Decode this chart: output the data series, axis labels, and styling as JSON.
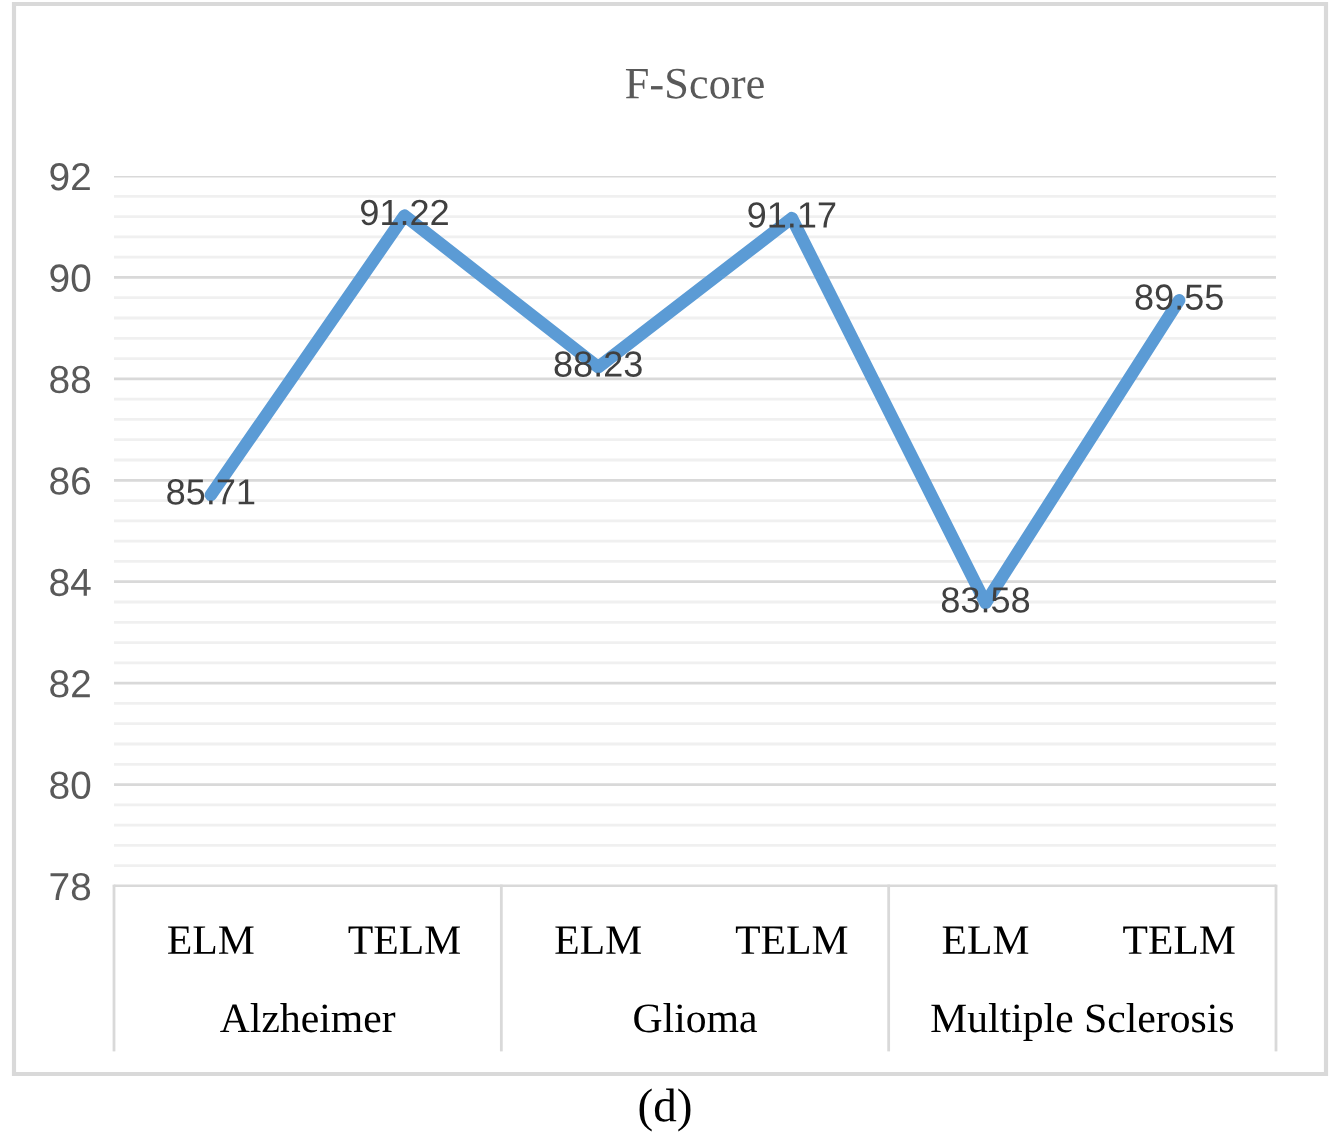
{
  "chart_data": {
    "type": "line",
    "title": "F-Score",
    "categories": [
      "ELM",
      "TELM",
      "ELM",
      "TELM",
      "ELM",
      "TELM"
    ],
    "series": [
      {
        "color": "#5b9bd5",
        "values": [
          85.71,
          91.22,
          88.23,
          91.17,
          83.58,
          89.55
        ]
      }
    ],
    "ylim": [
      78,
      92
    ],
    "yticks": [
      78,
      80,
      82,
      84,
      86,
      88,
      90,
      92
    ],
    "grid": "y",
    "data_labels": true,
    "marker": "none",
    "line_style": "solid",
    "legend": false,
    "annotations": [
      "Alzheimer",
      "Glioma",
      "Multiple Sclerosis",
      "(d)"
    ]
  }
}
